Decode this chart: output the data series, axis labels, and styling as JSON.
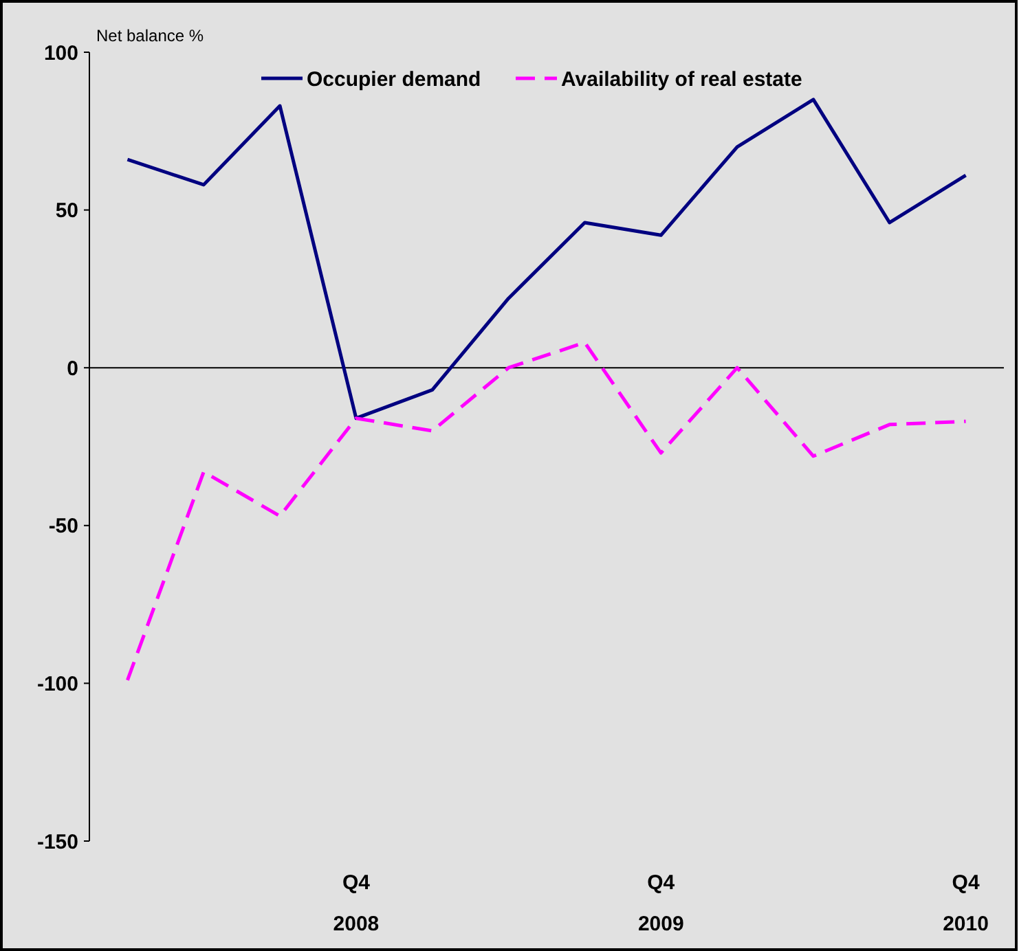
{
  "chart_data": {
    "type": "line",
    "ylabel": "Net balance %",
    "categories": [
      null,
      null,
      null,
      "Q4\n2008",
      null,
      null,
      null,
      "Q4\n2009",
      null,
      null,
      null,
      "Q4\n2010"
    ],
    "series": [
      {
        "name": "Occupier demand",
        "color": "#000080",
        "line_style": "solid",
        "values": [
          66,
          58,
          83,
          -16,
          -7,
          22,
          46,
          42,
          70,
          85,
          46,
          61
        ]
      },
      {
        "name": "Availability of real estate",
        "color": "#ff00ff",
        "line_style": "dashed",
        "values": [
          -99,
          -33,
          -47,
          -16,
          -20,
          0,
          8,
          -27,
          0,
          -28,
          -18,
          -17
        ]
      }
    ],
    "ylim": [
      -150,
      100
    ],
    "yticks": [
      -150,
      -100,
      -50,
      0,
      50,
      100
    ],
    "ref_lines": [
      {
        "axis": "y",
        "value": 0,
        "color": "#000000"
      }
    ],
    "grid": false,
    "legend": "top"
  }
}
